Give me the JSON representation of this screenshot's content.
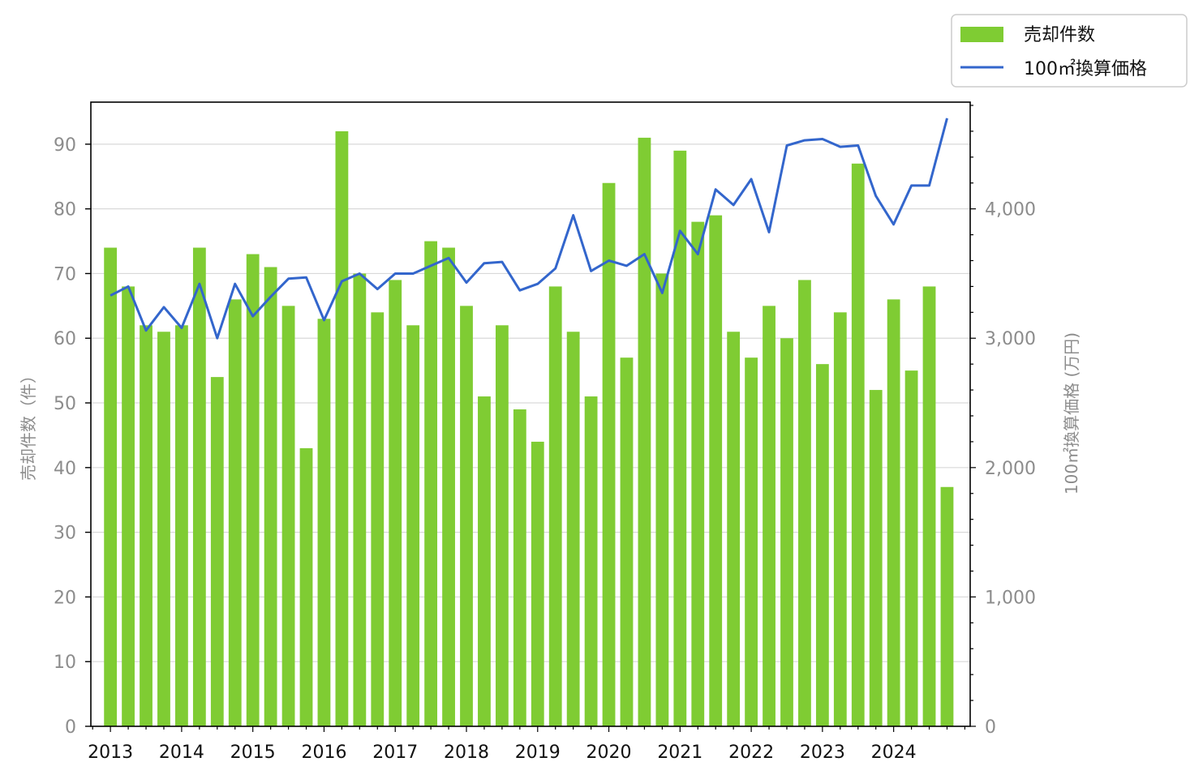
{
  "chart_data": {
    "type": "bar+line",
    "title": "",
    "colors": {
      "bar": "#7fcc33",
      "line": "#3366cc",
      "grid": "#d9d9d9",
      "axis": "#000000",
      "tick_text": "#8c8c8c"
    },
    "x_tick_labels": [
      "2013",
      "2014",
      "2015",
      "2016",
      "2017",
      "2018",
      "2019",
      "2020",
      "2021",
      "2022",
      "2023",
      "2024"
    ],
    "quarters_per_year": 4,
    "first_year": 2013,
    "xlim_quarters": [
      -1.1,
      48.3
    ],
    "y_left": {
      "label": "売却件数（件）",
      "ylim": [
        0,
        96.5
      ],
      "ticks": [
        0,
        10,
        20,
        30,
        40,
        50,
        60,
        70,
        80,
        90
      ]
    },
    "y_right": {
      "label": "100㎡換算価格 (万円)",
      "ylim": [
        0,
        4825
      ],
      "ticks": [
        0,
        1000,
        2000,
        3000,
        4000
      ],
      "tick_labels": [
        "0",
        "1,000",
        "2,000",
        "3,000",
        "4,000"
      ]
    },
    "grid": "horizontal, left axis",
    "legend": {
      "placement": "top-right (outside)",
      "entries": [
        {
          "label": "売却件数",
          "kind": "bar"
        },
        {
          "label": "100㎡換算価格",
          "kind": "line"
        }
      ]
    },
    "series": [
      {
        "name": "売却件数",
        "axis": "left",
        "kind": "bar",
        "values": [
          74,
          68,
          62,
          61,
          62,
          74,
          54,
          66,
          73,
          71,
          65,
          43,
          63,
          92,
          70,
          64,
          69,
          62,
          75,
          74,
          65,
          51,
          62,
          49,
          44,
          68,
          61,
          51,
          84,
          57,
          91,
          70,
          89,
          78,
          79,
          61,
          57,
          65,
          60,
          69,
          56,
          64,
          87,
          52,
          66,
          55,
          68,
          37
        ]
      },
      {
        "name": "100㎡換算価格",
        "axis": "right",
        "kind": "line",
        "values": [
          3330,
          3400,
          3060,
          3240,
          3080,
          3420,
          3000,
          3420,
          3170,
          3320,
          3460,
          3470,
          3140,
          3440,
          3500,
          3380,
          3500,
          3500,
          3560,
          3620,
          3430,
          3580,
          3590,
          3370,
          3420,
          3540,
          3950,
          3520,
          3600,
          3560,
          3650,
          3350,
          3830,
          3650,
          4150,
          4030,
          4230,
          3820,
          4490,
          4530,
          4540,
          4480,
          4490,
          4100,
          3880,
          4180,
          4180,
          4700
        ]
      }
    ]
  }
}
